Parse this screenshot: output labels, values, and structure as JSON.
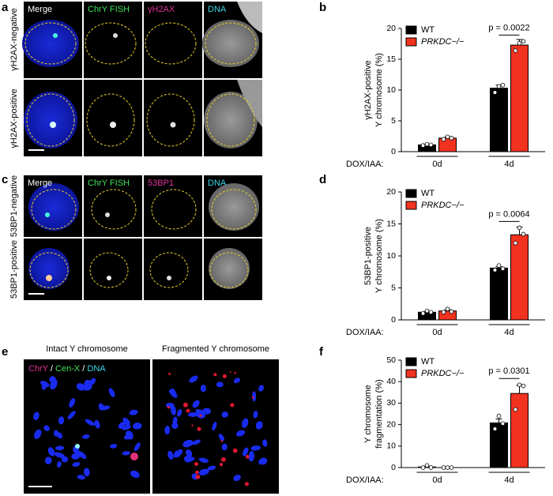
{
  "figure": {
    "panel_labels": [
      "a",
      "b",
      "c",
      "d",
      "e",
      "f"
    ],
    "panel_a": {
      "columns": [
        "Merge",
        "ChrY FISH",
        "γH2AX",
        "DNA"
      ],
      "rows": [
        "γH2AX-negative",
        "γH2AX-positive"
      ]
    },
    "panel_c": {
      "columns": [
        "Merge",
        "ChrY FISH",
        "53BP1",
        "DNA"
      ],
      "rows": [
        "53BP1-negative",
        "53BP1-positive"
      ]
    },
    "panel_e": {
      "titles": [
        "Intact Y chromosome",
        "Fragmented Y chromosome"
      ],
      "legend": [
        "ChrY",
        " / ",
        "Cen-X",
        " / ",
        "DNA"
      ]
    }
  },
  "chart_data": [
    {
      "type": "bar",
      "ylabel_lines": [
        "γH2AX-positive",
        "Y chromosome (%)"
      ],
      "xlabel": "DOX/IAA:",
      "categories": [
        "0d",
        "4d"
      ],
      "series": [
        {
          "name": "WT",
          "color": "#000000",
          "values": [
            1.1,
            10.3
          ],
          "errors": [
            0.1,
            0.5
          ],
          "points": [
            [
              1.0,
              1.2,
              1.1
            ],
            [
              9.6,
              10.6,
              10.8
            ]
          ]
        },
        {
          "name": "PRKDC−/−",
          "color": "#f0321e",
          "values": [
            2.2,
            17.3
          ],
          "errors": [
            0.2,
            0.9
          ],
          "points": [
            [
              2.0,
              2.4,
              2.2
            ],
            [
              16.4,
              17.6,
              17.9
            ]
          ]
        }
      ],
      "ylim": [
        0,
        20
      ],
      "yticks": [
        0,
        5,
        10,
        15,
        20
      ],
      "annotation": "p = 0.0022"
    },
    {
      "type": "bar",
      "ylabel_lines": [
        "53BP1-positive",
        "Y chromosome (%)"
      ],
      "xlabel": "DOX/IAA:",
      "categories": [
        "0d",
        "4d"
      ],
      "series": [
        {
          "name": "WT",
          "color": "#000000",
          "values": [
            1.2,
            8.1
          ],
          "errors": [
            0.1,
            0.2
          ],
          "points": [
            [
              1.0,
              1.4,
              1.2
            ],
            [
              7.8,
              8.5,
              8.0
            ]
          ]
        },
        {
          "name": "PRKDC−/−",
          "color": "#f0321e",
          "values": [
            1.4,
            13.3
          ],
          "errors": [
            0.2,
            1.2
          ],
          "points": [
            [
              1.2,
              1.7,
              1.3
            ],
            [
              12.0,
              14.4,
              13.4
            ]
          ]
        }
      ],
      "ylim": [
        0,
        20
      ],
      "yticks": [
        0,
        5,
        10,
        15,
        20
      ],
      "annotation": "p = 0.0064"
    },
    {
      "type": "bar",
      "ylabel_lines": [
        "Y chromosome",
        "fragmentation (%)"
      ],
      "xlabel": "DOX/IAA:",
      "categories": [
        "0d",
        "4d"
      ],
      "series": [
        {
          "name": "WT",
          "color": "#000000",
          "values": [
            0.3,
            20.8
          ],
          "errors": [
            0.3,
            1.8
          ],
          "points": [
            [
              0,
              1,
              0
            ],
            [
              18,
              24,
              20.5
            ]
          ]
        },
        {
          "name": "PRKDC−/−",
          "color": "#f0321e",
          "values": [
            0,
            34.5
          ],
          "errors": [
            0,
            3.8
          ],
          "points": [
            [
              0,
              0,
              0
            ],
            [
              27,
              38.5,
              38
            ]
          ]
        }
      ],
      "ylim": [
        0,
        50
      ],
      "yticks": [
        0,
        10,
        20,
        30,
        40,
        50
      ],
      "annotation": "p = 0.0301"
    }
  ]
}
